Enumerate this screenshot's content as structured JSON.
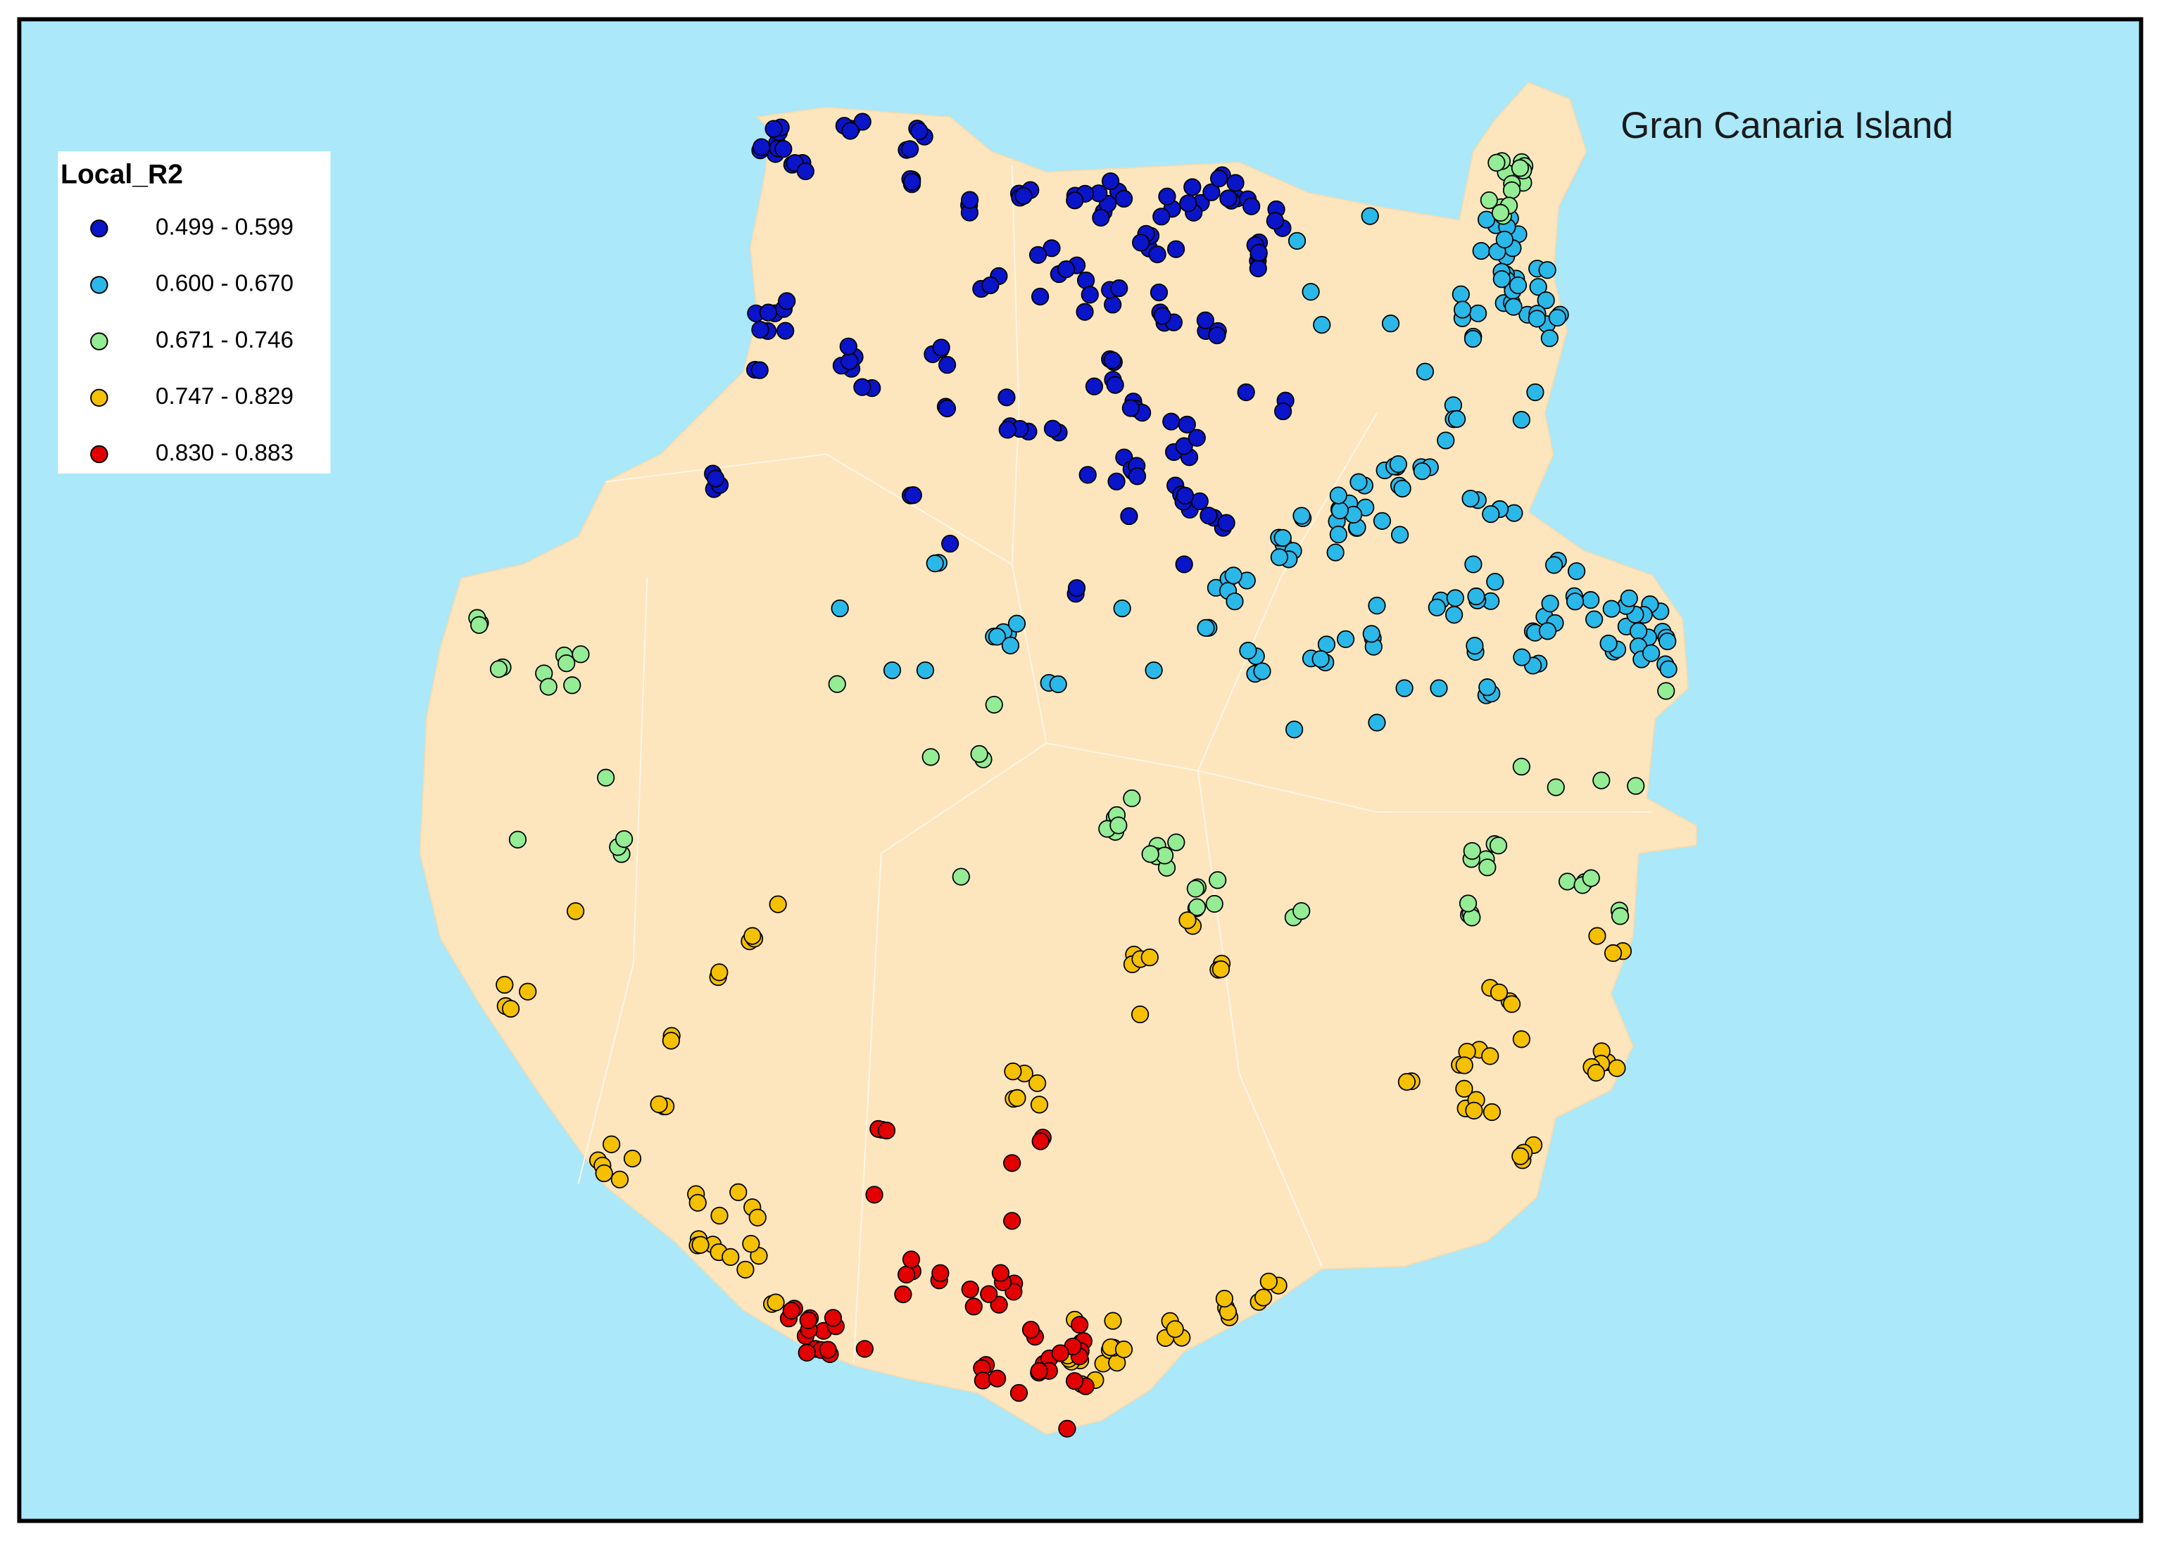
{
  "map": {
    "title": "Gran Canaria Island",
    "legend": {
      "title": "Local_R2",
      "items": [
        {
          "label": "0.499 - 0.599",
          "color": "#0a14c8"
        },
        {
          "label": "0.600 - 0.670",
          "color": "#2ab8e8"
        },
        {
          "label": "0.671 - 0.746",
          "color": "#94ec94"
        },
        {
          "label": "0.747 - 0.829",
          "color": "#f5c000"
        },
        {
          "label": "0.830 - 0.883",
          "color": "#e30000"
        }
      ]
    }
  }
}
